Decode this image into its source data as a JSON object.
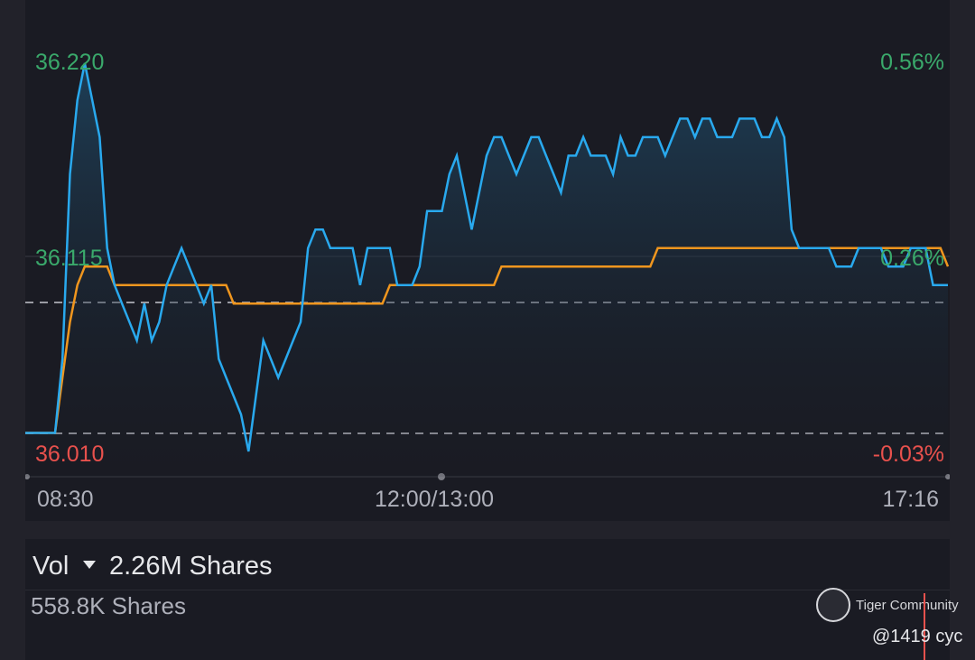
{
  "chart": {
    "price_high": "36.220",
    "price_mid": "36.115",
    "price_low": "36.010",
    "pct_high": "0.56%",
    "pct_mid": "0.26%",
    "pct_low": "-0.03%",
    "time_start": "08:30",
    "time_mid": "12:00/13:00",
    "time_end": "17:16"
  },
  "volume": {
    "label": "Vol",
    "total": "2.26M Shares",
    "sub": "558.8K Shares"
  },
  "watermark": {
    "brand": "Tiger Community",
    "handle": "@1419 cyc"
  },
  "colors": {
    "price_line": "#29a9ee",
    "avg_line": "#f0961e",
    "positive": "#3aa96b",
    "negative": "#e8514d"
  },
  "chart_data": {
    "type": "line",
    "y_min": 36.01,
    "y_max": 36.22,
    "prev_close": 36.02,
    "series": [
      {
        "values": [
          36.02,
          36.02,
          36.02,
          36.02,
          36.02,
          36.06,
          36.16,
          36.2,
          36.22,
          36.2,
          36.18,
          36.12,
          36.1,
          36.09,
          36.08,
          36.07,
          36.09,
          36.07,
          36.08,
          36.1,
          36.11,
          36.12,
          36.11,
          36.1,
          36.09,
          36.1,
          36.06,
          36.05,
          36.04,
          36.03,
          36.01,
          36.04,
          36.07,
          36.06,
          36.05,
          36.06,
          36.07,
          36.08,
          36.12,
          36.13,
          36.13,
          36.12,
          36.12,
          36.12,
          36.12,
          36.1,
          36.12,
          36.12,
          36.12,
          36.12,
          36.1,
          36.1,
          36.1,
          36.11,
          36.14,
          36.14,
          36.14,
          36.16,
          36.17,
          36.15,
          36.13,
          36.15,
          36.17,
          36.18,
          36.18,
          36.17,
          36.16,
          36.17,
          36.18,
          36.18,
          36.17,
          36.16,
          36.15,
          36.17,
          36.17,
          36.18,
          36.17,
          36.17,
          36.17,
          36.16,
          36.18,
          36.17,
          36.17,
          36.18,
          36.18,
          36.18,
          36.17,
          36.18,
          36.19,
          36.19,
          36.18,
          36.19,
          36.19,
          36.18,
          36.18,
          36.18,
          36.19,
          36.19,
          36.19,
          36.18,
          36.18,
          36.19,
          36.18,
          36.13,
          36.12,
          36.12,
          36.12,
          36.12,
          36.12,
          36.11,
          36.11,
          36.11,
          36.12,
          36.12,
          36.12,
          36.12,
          36.11,
          36.11,
          36.11,
          36.12,
          36.12,
          36.12,
          36.1,
          36.1,
          36.1
        ]
      },
      {
        "values": [
          36.02,
          36.02,
          36.02,
          36.02,
          36.02,
          36.05,
          36.08,
          36.1,
          36.11,
          36.11,
          36.11,
          36.11,
          36.1,
          36.1,
          36.1,
          36.1,
          36.1,
          36.1,
          36.1,
          36.1,
          36.1,
          36.1,
          36.1,
          36.1,
          36.1,
          36.1,
          36.1,
          36.1,
          36.09,
          36.09,
          36.09,
          36.09,
          36.09,
          36.09,
          36.09,
          36.09,
          36.09,
          36.09,
          36.09,
          36.09,
          36.09,
          36.09,
          36.09,
          36.09,
          36.09,
          36.09,
          36.09,
          36.09,
          36.09,
          36.1,
          36.1,
          36.1,
          36.1,
          36.1,
          36.1,
          36.1,
          36.1,
          36.1,
          36.1,
          36.1,
          36.1,
          36.1,
          36.1,
          36.1,
          36.11,
          36.11,
          36.11,
          36.11,
          36.11,
          36.11,
          36.11,
          36.11,
          36.11,
          36.11,
          36.11,
          36.11,
          36.11,
          36.11,
          36.11,
          36.11,
          36.11,
          36.11,
          36.11,
          36.11,
          36.11,
          36.12,
          36.12,
          36.12,
          36.12,
          36.12,
          36.12,
          36.12,
          36.12,
          36.12,
          36.12,
          36.12,
          36.12,
          36.12,
          36.12,
          36.12,
          36.12,
          36.12,
          36.12,
          36.12,
          36.12,
          36.12,
          36.12,
          36.12,
          36.12,
          36.12,
          36.12,
          36.12,
          36.12,
          36.12,
          36.12,
          36.12,
          36.12,
          36.12,
          36.12,
          36.12,
          36.12,
          36.12,
          36.12,
          36.12,
          36.11
        ]
      }
    ]
  }
}
